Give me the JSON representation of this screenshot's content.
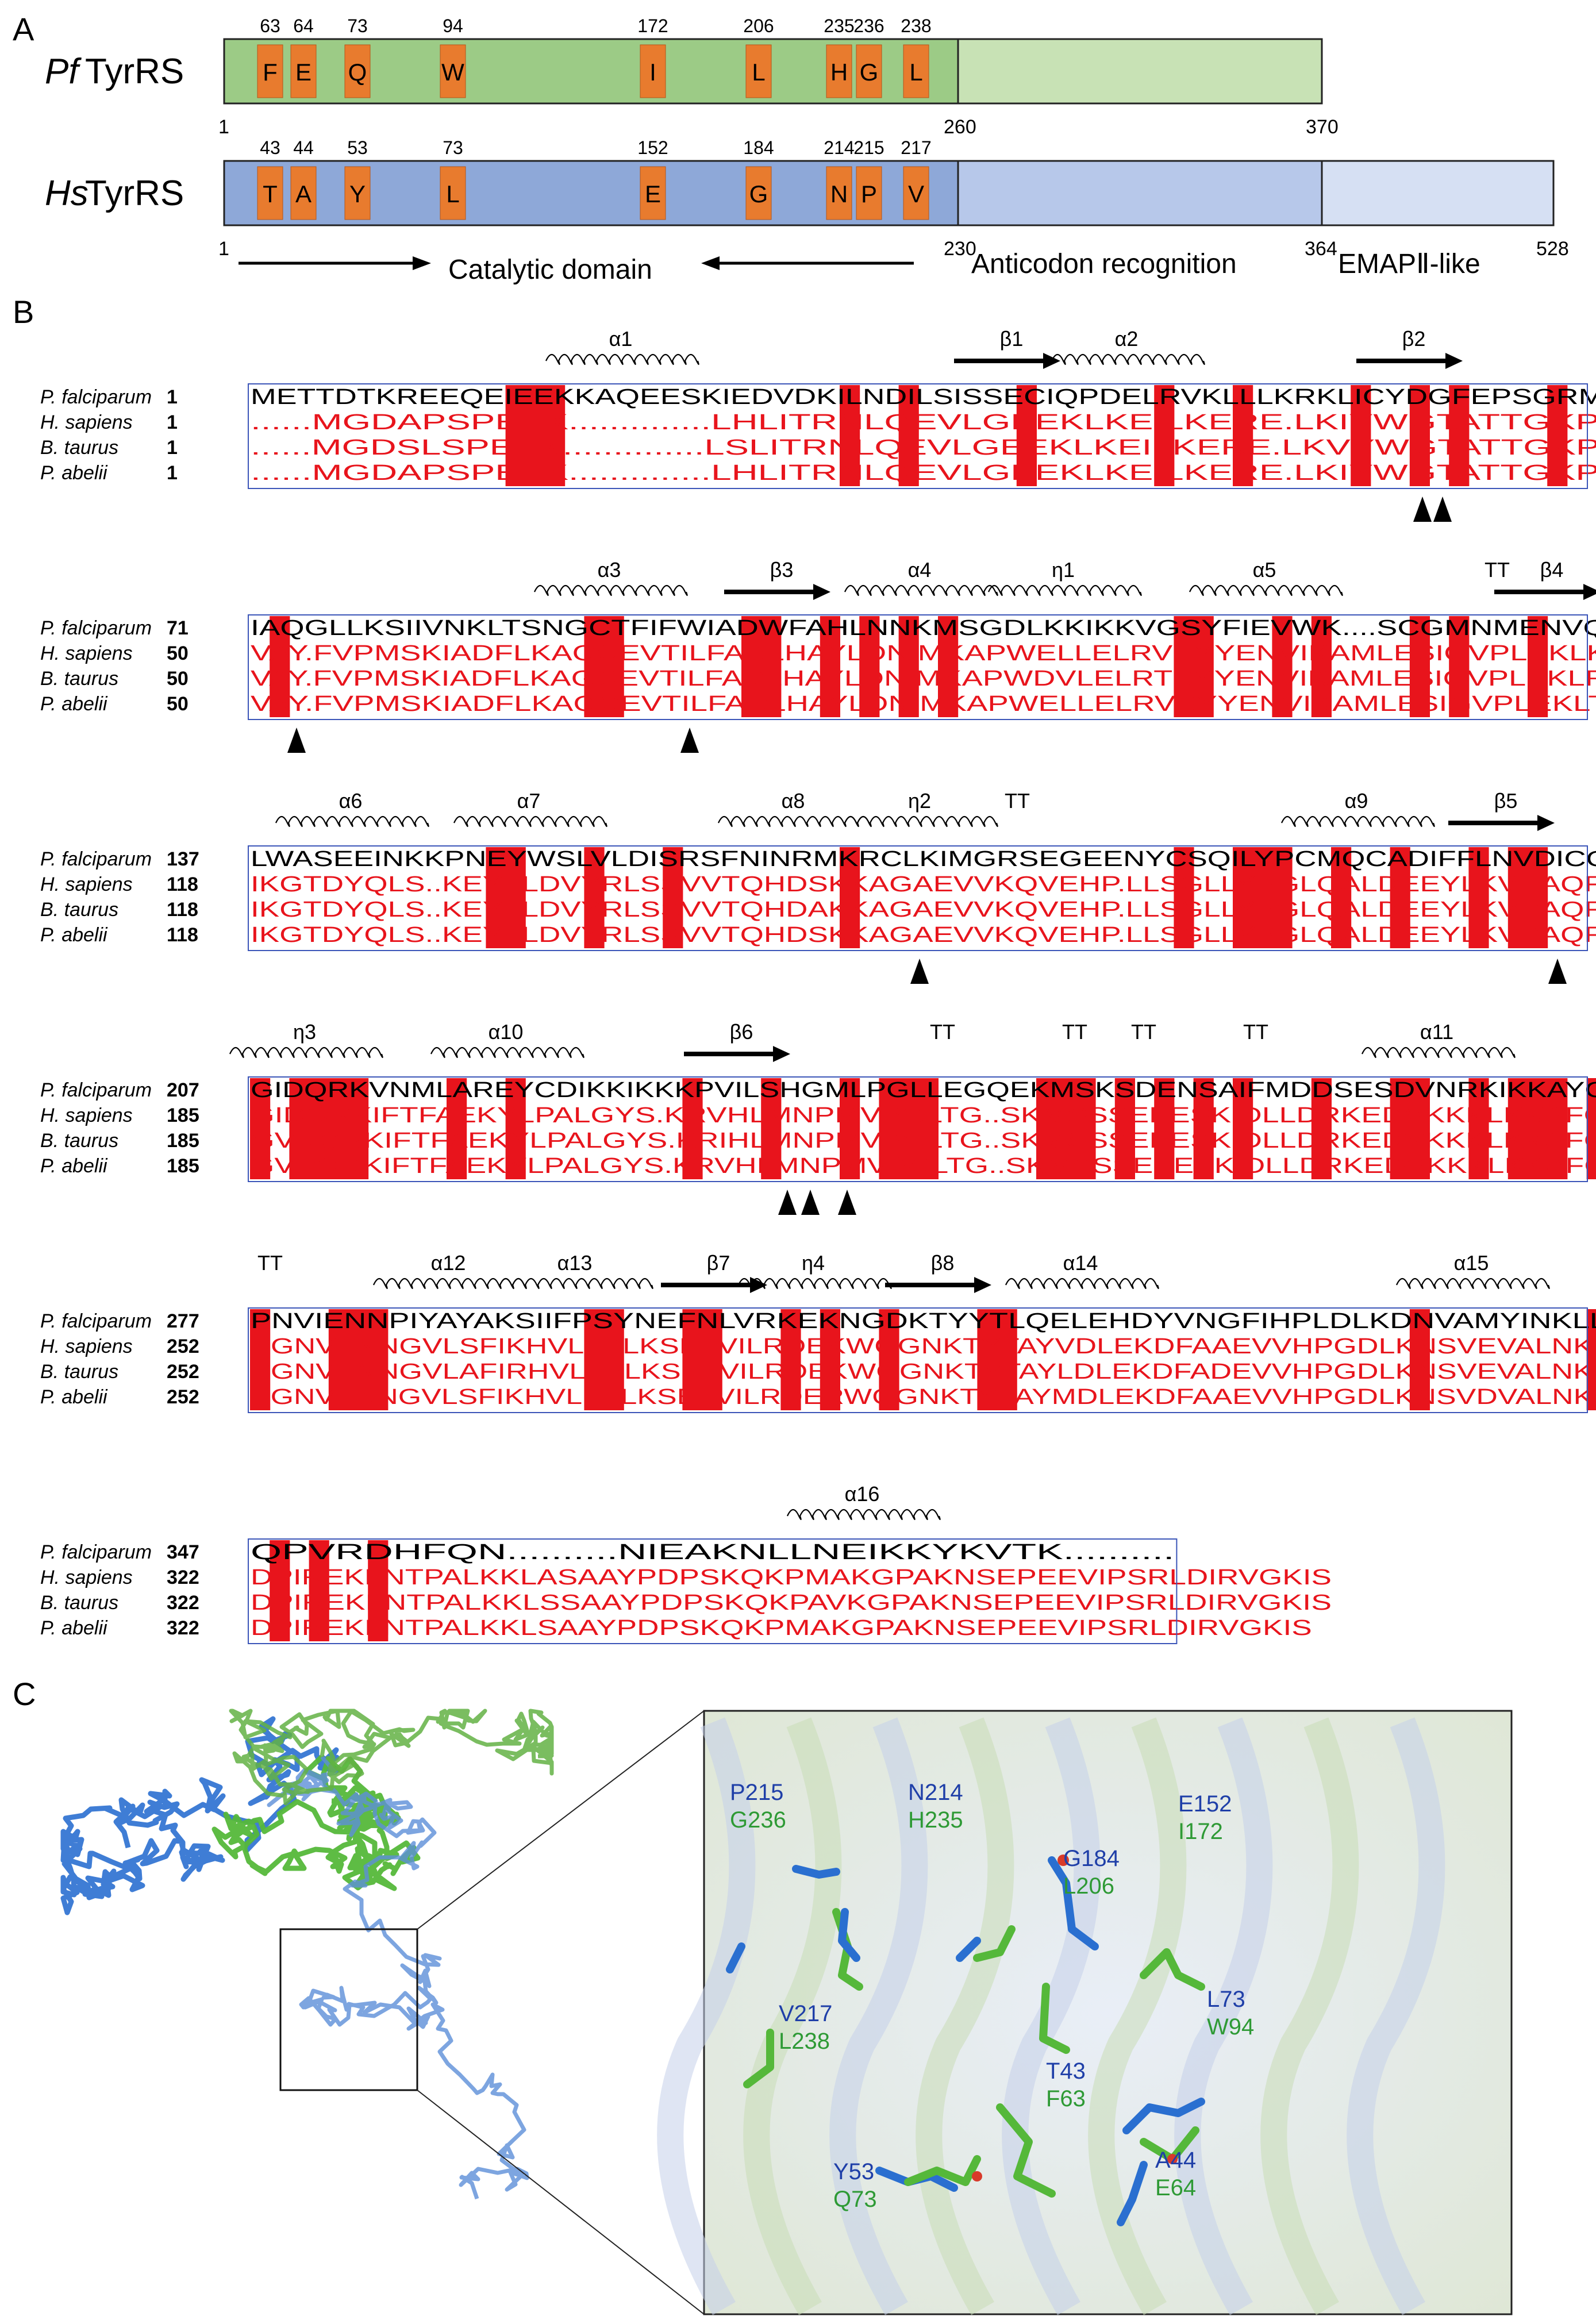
{
  "panel_a": {
    "letter": "A",
    "pf": {
      "name_italic": "Pf",
      "name_rest": "TyrRS",
      "residues": [
        {
          "pos": "63",
          "aa": "F"
        },
        {
          "pos": "64",
          "aa": "E"
        },
        {
          "pos": "73",
          "aa": "Q"
        },
        {
          "pos": "94",
          "aa": "W"
        },
        {
          "pos": "172",
          "aa": "I"
        },
        {
          "pos": "206",
          "aa": "L"
        },
        {
          "pos": "235",
          "aa": "H"
        },
        {
          "pos": "236",
          "aa": "G"
        },
        {
          "pos": "238",
          "aa": "L"
        }
      ],
      "boundaries": [
        "1",
        "260",
        "370"
      ]
    },
    "hs": {
      "name_italic": "Hs",
      "name_rest": "TyrRS",
      "residues": [
        {
          "pos": "43",
          "aa": "T"
        },
        {
          "pos": "44",
          "aa": "A"
        },
        {
          "pos": "53",
          "aa": "Y"
        },
        {
          "pos": "73",
          "aa": "L"
        },
        {
          "pos": "152",
          "aa": "E"
        },
        {
          "pos": "184",
          "aa": "G"
        },
        {
          "pos": "214",
          "aa": "N"
        },
        {
          "pos": "215",
          "aa": "P"
        },
        {
          "pos": "217",
          "aa": "V"
        }
      ],
      "boundaries": [
        "1",
        "230",
        "364",
        "528"
      ]
    },
    "domains": {
      "catalytic": "Catalytic domain",
      "anticodon": "Anticodon recognition",
      "emap": "EMAPⅡ-like"
    },
    "colors": {
      "pf_dark": "#9ccb86",
      "pf_light": "#c8e2b5",
      "hs_dark": "#8ea8d8",
      "hs_mid": "#b7c8ea",
      "hs_light": "#d6e0f3",
      "residue": "#e87b2e"
    }
  },
  "panel_b": {
    "letter": "B",
    "species": [
      "P. falciparum",
      "H. sapiens",
      "B. taurus",
      "P. abelii"
    ],
    "blocks": [
      {
        "structure": [
          "α1",
          "β1",
          "α2",
          "β2"
        ],
        "starts": [
          "1",
          "1",
          "1",
          "1"
        ],
        "seqs": [
          "METTDTKREEQEIEEKKAQEESKIEDVDKILNDILSISSECIQPDELRVKLLLKRKLICYDGFEPSGRMH",
          "......MGDAPSPEEK..............LHLITRNLQEVLGEEKLKEILKERE.LKIYWGTATTGKPH",
          "......MGDSLSPEEK..............LSLITRNLQEVLGEEKLKEILKERE.LKVYWGTATTGKPH",
          "......MGDAPSPEEK..............LHLITRNLQEVLGEEKLKEILKERE.LKIYWGTATTGKPH"
        ]
      },
      {
        "structure": [
          "α3",
          "β3",
          "α4",
          "η1",
          "α5",
          "TT",
          "β4"
        ],
        "starts": [
          "71",
          "50",
          "50",
          "50"
        ],
        "seqs": [
          "IAQGLLKSIIVNKLTSNGCTFIFWIADWFAHLNNKMSGDLKKIKKVGSYFIEVWK....SCGMNMENVQF",
          "VAY.FVPMSKIADFLKAGCEVTILFADLHAYLDN.MKAPWELLELRVSYYENVIKAMLESIGVPLEKLKF",
          "VAY.FVPMSKIADFLKAGCEVTILFADLHAYLDN.MKAPWDVLELRTSYYENVIKAMLESIGVPLEKLRF",
          "VAY.FVPMSKIADFLKAGCEVTILFADLHAYLDN.MKAPWELLELRVSYYENVIKAMLESIGVPLEKLTF"
        ]
      },
      {
        "structure": [
          "α6",
          "α7",
          "α8",
          "η2",
          "TT",
          "α9",
          "β5"
        ],
        "starts": [
          "137",
          "118",
          "118",
          "118"
        ],
        "seqs": [
          "LWASEEINKKPNEYWSLVLDISRSFNINRMKRCLKIMGRSEGEENYCSQILYPCMQCADIFFLNVDICQL",
          "IKGTDYQLS..KEYTLDVYRLSSVVTQHDSKKAGAEVVKQVEHP.LLSGLLYPGLQALDEEYLKVDAQFG",
          "IKGTDYQLS..KEYTLDVYRLSSVVTQHDAKKAGAEVVKQVEHP.LLSGLLYPGLQALDEEYLKVDAQFG",
          "IKGTDYQLS..KEYTLDVYRLSSVVTQHDSKKAGAEVVKQVEHP.LLSGLLYPGLQALDEEYLKVDAQFG"
        ]
      },
      {
        "structure": [
          "η3",
          "α10",
          "β6",
          "TT",
          "TT",
          "TT",
          "TT",
          "α11"
        ],
        "starts": [
          "207",
          "185",
          "185",
          "185"
        ],
        "seqs": [
          "GIDQRKVNMLAREYCDIKKIKKKPVILSHGMLPGLLEGQEKMSKSDENSAIFMDDSESDVNRKIKKAYCP",
          "GIDQRKIFTFAEKYLPALGYS.KRVHLMNPMVPGLTG..SKMSSSEEESKIDLLDRKEDVKKKLKKAFCE",
          "GVDQRKIFTFAEKYLPALGYS.KRIHLMNPMVPGLTG..SKMSSSEEESKIDLLDRKEDVKKKLKKAFCE",
          "GVDQRKIFTFAEKYLPALGYS.KRVHLMNPMVPGLTG..SKMSSSEEESKIDLLDRKEDVKKKLKKAFCE"
        ]
      },
      {
        "structure": [
          "TT",
          "α12",
          "α13",
          "β7",
          "η4",
          "β8",
          "α14",
          "α15"
        ],
        "starts": [
          "277",
          "252",
          "252",
          "252"
        ],
        "seqs": [
          "PNVIENNPIYAYAKSIIFPSYNEFNLVRKEKNGDKTYYTLQELEHDYVNGFIHPLDLKDNVAMYINKLL",
          "PGNVENNGVLSFIKHVLFPLKSEFVILRDEKWGGNKTYTAYVDLEKDFAAEVVHPGDLKNSVEVALNKLL",
          "PGNVENNGVLAFIRHVLFPLKSEFVILRDEKWGGNKTYTAYLDLEKDFADEVVHPGDLKNSVEVALNKLL",
          "PGNVENNGVLSFIKHVLFPLKSEFVILRDERWGGNKTYTAYMDLEKDFAAEVVHPGDLKNSVDVALNKLL"
        ]
      },
      {
        "structure": [
          "α16"
        ],
        "starts": [
          "347",
          "322",
          "322",
          "322"
        ],
        "seqs": [
          "QPVRDHFQN..........NIEAKNLLNEIKKYKVTK..........",
          "DPIREKFNTPALKKLASAAYPDPSKQKPMAKGPAKNSEPEEVIPSRLDIRVGKIS",
          "DPIREKFNTPALKKLSSAAYPDPSKQKPAVKGPAKNSEPEEVIPSRLDIRVGKIS",
          "DPIREKFNTPALKKLSAAYPDPSKQKPMAKGPAKNSEPEEVIPSRLDIRVGKIS"
        ]
      }
    ],
    "colors": {
      "conserved": "#e8141c",
      "box": "#3b55b8",
      "similar_text": "#e8141c"
    }
  },
  "panel_c": {
    "letter": "C",
    "labels": [
      {
        "hs": "P215",
        "pf": "G236"
      },
      {
        "hs": "N214",
        "pf": "H235"
      },
      {
        "hs": "E152",
        "pf": "I172"
      },
      {
        "hs": "G184",
        "pf": "L206"
      },
      {
        "hs": "V217",
        "pf": "L238"
      },
      {
        "hs": "L73",
        "pf": "W94"
      },
      {
        "hs": "T43",
        "pf": "F63"
      },
      {
        "hs": "Y53",
        "pf": "Q73"
      },
      {
        "hs": "A44",
        "pf": "E64"
      }
    ],
    "colors": {
      "hs": "#1f3fa8",
      "pf": "#2e9a35",
      "hs_stick": "#2a6fd0",
      "pf_stick": "#55b83a"
    }
  }
}
